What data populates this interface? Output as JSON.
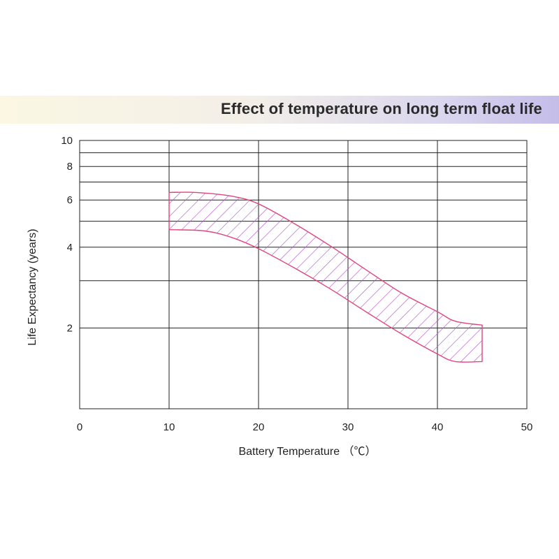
{
  "chart_data": {
    "type": "area",
    "title": "Effect of temperature on long term float life",
    "xlabel": "Battery Temperature （℃）",
    "ylabel": "Life Expectancy (years)",
    "x_ticks": [
      0,
      10,
      20,
      30,
      40,
      50
    ],
    "y_ticks": [
      2,
      4,
      6,
      8,
      10
    ],
    "xlim": [
      0,
      50
    ],
    "ylim": [
      1,
      10
    ],
    "y_scale": "log",
    "grid": true,
    "band": {
      "upper": [
        {
          "x": 10,
          "y": 6.4
        },
        {
          "x": 13,
          "y": 6.4
        },
        {
          "x": 17,
          "y": 6.2
        },
        {
          "x": 20,
          "y": 5.8
        },
        {
          "x": 24,
          "y": 4.9
        },
        {
          "x": 28,
          "y": 4.05
        },
        {
          "x": 32,
          "y": 3.3
        },
        {
          "x": 36,
          "y": 2.7
        },
        {
          "x": 40,
          "y": 2.3
        },
        {
          "x": 42,
          "y": 2.12
        },
        {
          "x": 45,
          "y": 2.05
        }
      ],
      "lower": [
        {
          "x": 10,
          "y": 4.65
        },
        {
          "x": 14,
          "y": 4.6
        },
        {
          "x": 17,
          "y": 4.35
        },
        {
          "x": 20,
          "y": 3.95
        },
        {
          "x": 24,
          "y": 3.35
        },
        {
          "x": 28,
          "y": 2.8
        },
        {
          "x": 32,
          "y": 2.3
        },
        {
          "x": 36,
          "y": 1.9
        },
        {
          "x": 40,
          "y": 1.6
        },
        {
          "x": 42,
          "y": 1.5
        },
        {
          "x": 45,
          "y": 1.5
        }
      ],
      "colors": {
        "outline": "#e0457e",
        "hatch": "#b05ac8"
      }
    }
  }
}
